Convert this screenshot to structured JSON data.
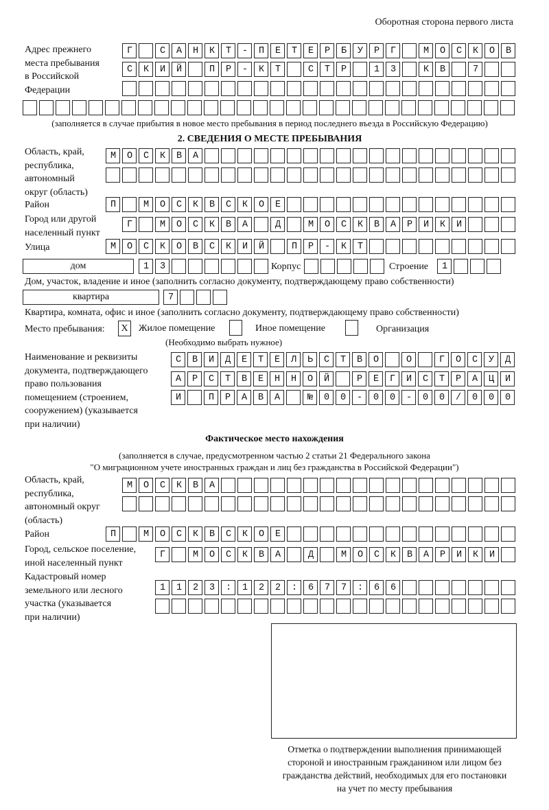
{
  "header": "Оборотная сторона первого листа",
  "prev_address": {
    "label": [
      "Адрес прежнего",
      "места пребывания",
      "в Российской",
      "Федерации"
    ],
    "rows": [
      "Г САНКТ-ПЕТЕРБУРГ МОСКОВ",
      "СКИЙ ПР-КТ СТР 13 КВ 7  ",
      "                        ",
      "                              "
    ],
    "note": "(заполняется в случае прибытия в новое место пребывания в период последнего въезда в Российскую Федерацию)"
  },
  "section2": {
    "title": "2. СВЕДЕНИЯ О МЕСТЕ ПРЕБЫВАНИЯ",
    "region_label": [
      "Область, край,",
      "республика,",
      "автономный",
      "округ (область)"
    ],
    "region_rows": [
      "МОСКВА                   ",
      "                         "
    ],
    "district_label": "Район",
    "district_row": "П МОСКВСКОЕ              ",
    "city_label": [
      "Город или другой",
      "населенный пункт"
    ],
    "city_row": "Г МОСКВА Д МОСКВАРИКИ   ",
    "street_label": "Улица",
    "street_row": "МОСКОВСКИЙ ПР-КТ         ",
    "house_type": "дом",
    "house_row": "13      ",
    "korpus_label": "Корпус",
    "korpus_row": "     ",
    "building_label": "Строение",
    "building_row": "1   ",
    "house_note": "Дом, участок, владение и иное (заполнить согласно документу, подтверждающему право собственности)",
    "flat_type": "квартира",
    "flat_row": "7   ",
    "flat_note": "Квартира, комната, офис и иное (заполнить согласно документу, подтверждающему право собственности)",
    "stay_label": "Место пребывания:",
    "stay_options": [
      {
        "label": "Жилое помещение",
        "mark": "X"
      },
      {
        "label": "Иное помещение",
        "mark": ""
      },
      {
        "label": "Организация",
        "mark": ""
      }
    ],
    "stay_note": "(Необходимо выбрать нужное)",
    "doc_label": [
      "Наименование и реквизиты",
      "документа, подтверждающего",
      "право пользования",
      "помещением (строением,",
      "сооружением) (указывается",
      "при наличии)"
    ],
    "doc_rows": [
      "СВИДЕТЕЛЬСТВО О ГОСУД",
      "АРСТВЕННОЙ РЕГИСТРАЦИ",
      "И ПРАВА №00-00-00/000"
    ]
  },
  "actual": {
    "title": "Фактическое место нахождения",
    "note1": "(заполняется в случае, предусмотренном частью 2 статьи 21 Федерального закона",
    "note2": "\"О миграционном учете иностранных граждан и лиц без гражданства в Российской Федерации\")",
    "region_label": [
      "Область, край,",
      "республика,",
      "автономный округ",
      "(область)"
    ],
    "region_rows": [
      "МОСКВА                  ",
      "                        "
    ],
    "district_label": "Район",
    "district_row": "П МОСКВСКОЕ              ",
    "city_label": [
      "Город, сельское поселение,",
      "иной населенный пункт"
    ],
    "city_row": "Г МОСКВА Д МОСКВАРИКИ ",
    "cadastral_label": [
      "Кадастровый номер",
      "земельного или лесного",
      "участка (указывается",
      "при наличии)"
    ],
    "cadastral_rows": [
      "1123:122:677:66       ",
      "                      "
    ]
  },
  "stamp_caption": [
    "Отметка о подтверждении выполнения принимающей",
    "стороной и иностранным гражданином или лицом без",
    "гражданства действий, необходимых для его постановки",
    "на учет по месту пребывания"
  ]
}
